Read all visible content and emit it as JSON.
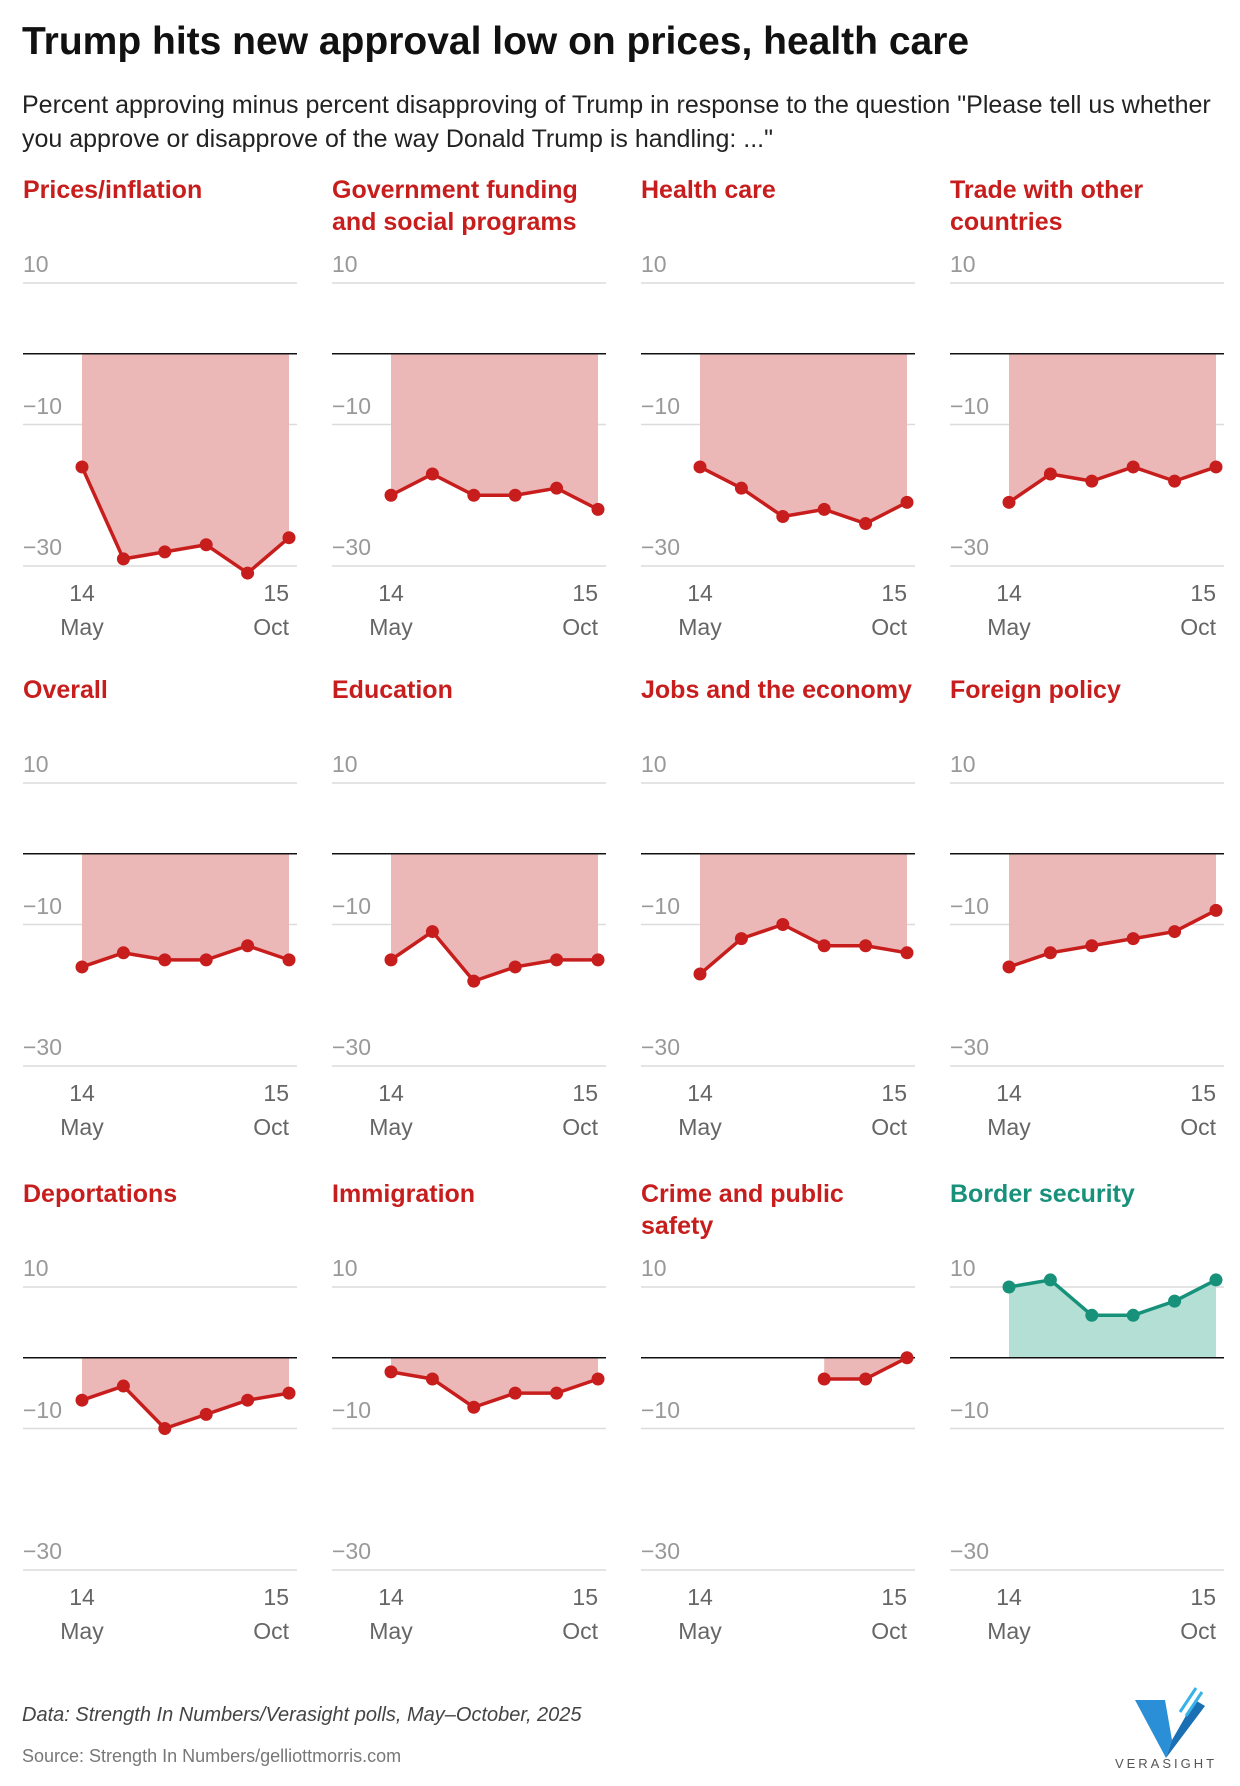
{
  "title": "Trump hits new approval low on prices, health care",
  "subtitle": "Percent approving minus percent disapproving of Trump in response to the question \"Please tell us whether you approve or disapprove of the way Donald Trump is handling: ...\"",
  "note": "Data: Strength In Numbers/Verasight polls, May–October, 2025",
  "source": "Source: Strength In Numbers/gelliottmorris.com",
  "logo": "VERASIGHT",
  "chart_data": [
    {
      "type": "area",
      "title": "Prices/inflation",
      "categories": [
        "14 May",
        null,
        null,
        null,
        null,
        "15 Oct"
      ],
      "values": [
        -16,
        -29,
        -28,
        -27,
        -31,
        -26
      ],
      "color": "#c71e1d",
      "fill": "#ebb8b7",
      "ylim": [
        -30,
        10
      ],
      "yticks": [
        {
          "value": 10,
          "label": "10"
        },
        {
          "value": -10,
          "label": "−10"
        },
        {
          "value": -30,
          "label": "−30"
        }
      ],
      "zero_line": true,
      "grid": true
    },
    {
      "type": "area",
      "title": "Government funding and social programs",
      "categories": [
        "14 May",
        null,
        null,
        null,
        null,
        "15 Oct"
      ],
      "values": [
        -20,
        -17,
        -20,
        -20,
        -19,
        -22
      ],
      "color": "#c71e1d",
      "fill": "#ebb8b7",
      "ylim": [
        -30,
        10
      ],
      "yticks": [
        {
          "value": 10,
          "label": "10"
        },
        {
          "value": -10,
          "label": "−10"
        },
        {
          "value": -30,
          "label": "−30"
        }
      ],
      "zero_line": true,
      "grid": true
    },
    {
      "type": "area",
      "title": "Health care",
      "categories": [
        "14 May",
        null,
        null,
        null,
        null,
        "15 Oct"
      ],
      "values": [
        -16,
        -19,
        -23,
        -22,
        -24,
        -21
      ],
      "color": "#c71e1d",
      "fill": "#ebb8b7",
      "ylim": [
        -30,
        10
      ],
      "yticks": [
        {
          "value": 10,
          "label": "10"
        },
        {
          "value": -10,
          "label": "−10"
        },
        {
          "value": -30,
          "label": "−30"
        }
      ],
      "zero_line": true,
      "grid": true
    },
    {
      "type": "area",
      "title": "Trade with other countries",
      "categories": [
        "14 May",
        null,
        null,
        null,
        null,
        "15 Oct"
      ],
      "values": [
        -21,
        -17,
        -18,
        -16,
        -18,
        -16
      ],
      "color": "#c71e1d",
      "fill": "#ebb8b7",
      "ylim": [
        -30,
        10
      ],
      "yticks": [
        {
          "value": 10,
          "label": "10"
        },
        {
          "value": -10,
          "label": "−10"
        },
        {
          "value": -30,
          "label": "−30"
        }
      ],
      "zero_line": true,
      "grid": true
    },
    {
      "type": "area",
      "title": "Overall",
      "categories": [
        "14 May",
        null,
        null,
        null,
        null,
        "15 Oct"
      ],
      "values": [
        -16,
        -14,
        -15,
        -15,
        -13,
        -15
      ],
      "color": "#c71e1d",
      "fill": "#ebb8b7",
      "ylim": [
        -30,
        10
      ],
      "yticks": [
        {
          "value": 10,
          "label": "10"
        },
        {
          "value": -10,
          "label": "−10"
        },
        {
          "value": -30,
          "label": "−30"
        }
      ],
      "zero_line": true,
      "grid": true
    },
    {
      "type": "area",
      "title": "Education",
      "categories": [
        "14 May",
        null,
        null,
        null,
        null,
        "15 Oct"
      ],
      "values": [
        -15,
        -11,
        -18,
        -16,
        -15,
        -15
      ],
      "color": "#c71e1d",
      "fill": "#ebb8b7",
      "ylim": [
        -30,
        10
      ],
      "yticks": [
        {
          "value": 10,
          "label": "10"
        },
        {
          "value": -10,
          "label": "−10"
        },
        {
          "value": -30,
          "label": "−30"
        }
      ],
      "zero_line": true,
      "grid": true
    },
    {
      "type": "area",
      "title": "Jobs and the economy",
      "categories": [
        "14 May",
        null,
        null,
        null,
        null,
        "15 Oct"
      ],
      "values": [
        -17,
        -12,
        -10,
        -13,
        -13,
        -14
      ],
      "color": "#c71e1d",
      "fill": "#ebb8b7",
      "ylim": [
        -30,
        10
      ],
      "yticks": [
        {
          "value": 10,
          "label": "10"
        },
        {
          "value": -10,
          "label": "−10"
        },
        {
          "value": -30,
          "label": "−30"
        }
      ],
      "zero_line": true,
      "grid": true
    },
    {
      "type": "area",
      "title": "Foreign policy",
      "categories": [
        "14 May",
        null,
        null,
        null,
        null,
        "15 Oct"
      ],
      "values": [
        -16,
        -14,
        -13,
        -12,
        -11,
        -8
      ],
      "color": "#c71e1d",
      "fill": "#ebb8b7",
      "ylim": [
        -30,
        10
      ],
      "yticks": [
        {
          "value": 10,
          "label": "10"
        },
        {
          "value": -10,
          "label": "−10"
        },
        {
          "value": -30,
          "label": "−30"
        }
      ],
      "zero_line": true,
      "grid": true
    },
    {
      "type": "area",
      "title": "Deportations",
      "categories": [
        "14 May",
        null,
        null,
        null,
        null,
        "15 Oct"
      ],
      "values": [
        -6,
        -4,
        -10,
        -8,
        -6,
        -5
      ],
      "color": "#c71e1d",
      "fill": "#ebb8b7",
      "ylim": [
        -30,
        10
      ],
      "yticks": [
        {
          "value": 10,
          "label": "10"
        },
        {
          "value": -10,
          "label": "−10"
        },
        {
          "value": -30,
          "label": "−30"
        }
      ],
      "zero_line": true,
      "grid": true
    },
    {
      "type": "area",
      "title": "Immigration",
      "categories": [
        "14 May",
        null,
        null,
        null,
        null,
        "15 Oct"
      ],
      "values": [
        -2,
        -3,
        -7,
        -5,
        -5,
        -3
      ],
      "color": "#c71e1d",
      "fill": "#ebb8b7",
      "ylim": [
        -30,
        10
      ],
      "yticks": [
        {
          "value": 10,
          "label": "10"
        },
        {
          "value": -10,
          "label": "−10"
        },
        {
          "value": -30,
          "label": "−30"
        }
      ],
      "zero_line": true,
      "grid": true
    },
    {
      "type": "area",
      "title": "Crime and public safety",
      "categories": [
        "14 May",
        null,
        null,
        null,
        null,
        "15 Oct"
      ],
      "values": [
        null,
        null,
        null,
        -3,
        -3,
        0
      ],
      "color": "#c71e1d",
      "fill": "#ebb8b7",
      "ylim": [
        -30,
        10
      ],
      "yticks": [
        {
          "value": 10,
          "label": "10"
        },
        {
          "value": -10,
          "label": "−10"
        },
        {
          "value": -30,
          "label": "−30"
        }
      ],
      "zero_line": true,
      "grid": true
    },
    {
      "type": "area",
      "title": "Border security",
      "categories": [
        "14 May",
        null,
        null,
        null,
        null,
        "15 Oct"
      ],
      "values": [
        10,
        11,
        6,
        6,
        8,
        11
      ],
      "color": "#18917b",
      "fill": "#b3dfd4",
      "ylim": [
        -30,
        10
      ],
      "yticks": [
        {
          "value": 10,
          "label": "10"
        },
        {
          "value": -10,
          "label": "−10"
        },
        {
          "value": -30,
          "label": "−30"
        }
      ],
      "zero_line": true,
      "grid": true
    }
  ]
}
